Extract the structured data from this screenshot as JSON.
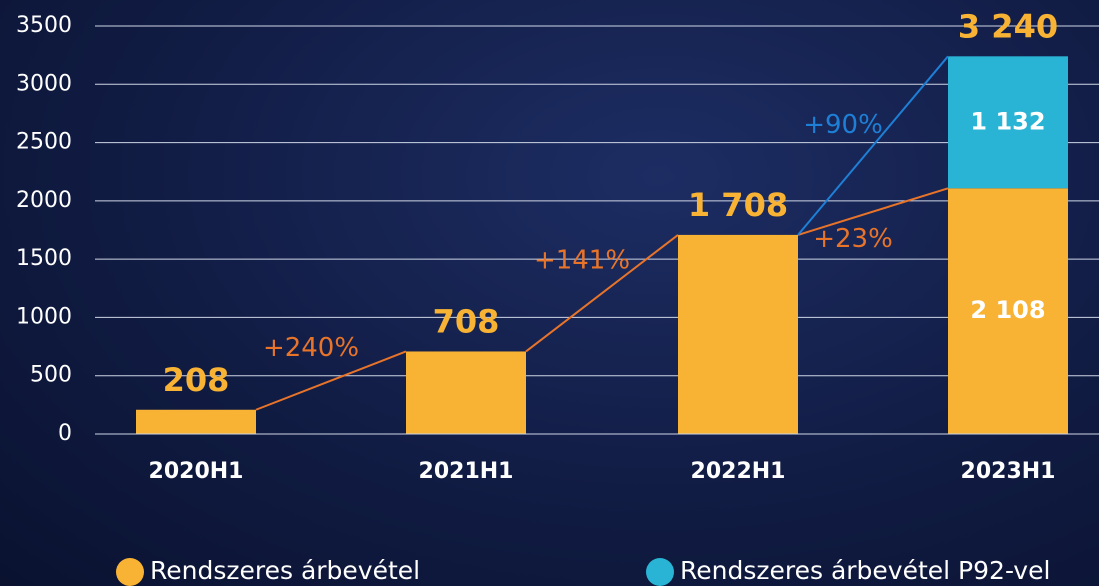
{
  "chart_data": {
    "type": "bar",
    "categories": [
      "2020H1",
      "2021H1",
      "2022H1",
      "2023H1"
    ],
    "series": [
      {
        "name": "Rendszeres árbevétel",
        "color": "#f8b334",
        "values": [
          208,
          708,
          1708,
          2108
        ],
        "value_labels": [
          "208",
          "708",
          "1 708",
          "2 108"
        ]
      },
      {
        "name": "Rendszeres árbevétel P92-vel",
        "color": "#29b3d4",
        "values": [
          null,
          null,
          null,
          1132
        ],
        "value_labels": [
          null,
          null,
          null,
          "1 132"
        ]
      }
    ],
    "totals": [
      null,
      null,
      null,
      3240
    ],
    "total_labels": [
      null,
      null,
      null,
      "3 240"
    ],
    "growth_labels": [
      "+240%",
      "+141%",
      "+23%"
    ],
    "growth_color": "#e8742a",
    "growth_total_label": "+90%",
    "growth_total_color": "#1e7fd6",
    "ylim": [
      0,
      3500
    ],
    "yticks": [
      0,
      500,
      1000,
      1500,
      2000,
      2500,
      3000,
      3500
    ],
    "grid": true
  }
}
